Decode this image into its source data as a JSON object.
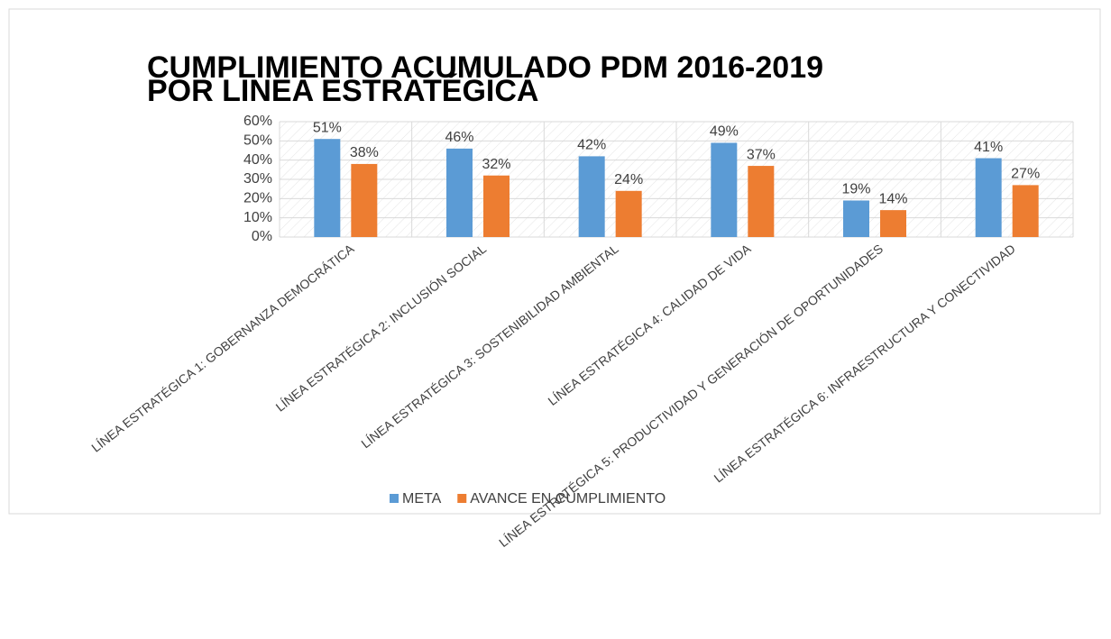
{
  "chart_data": {
    "type": "bar",
    "title": [
      "CUMPLIMIENTO ACUMULADO PDM 2016-2019",
      "POR LINEA ESTRATÉGICA"
    ],
    "categories": [
      "LÍNEA ESTRATÉGICA 1: GOBERNANZA DEMOCRÁTICA",
      "LÍNEA ESTRATÉGICA 2: INCLUSIÓN SOCIAL",
      "LÍNEA ESTRATÉGICA 3: SOSTENIBILIDAD AMBIENTAL",
      "LÍNEA ESTRATÉGICA 4: CALIDAD DE VIDA",
      "LÍNEA ESTRATÉGICA 5: PRODUCTIVIDAD Y GENERACIÓN DE OPORTUNIDADES",
      "LÍNEA ESTRATÉGICA 6: INFRAESTRUCTURA Y CONECTIVIDAD"
    ],
    "series": [
      {
        "name": "META",
        "color": "#5b9bd5",
        "values": [
          51,
          46,
          42,
          49,
          19,
          41
        ],
        "value_labels": [
          "51%",
          "46%",
          "42%",
          "49%",
          "19%",
          "41%"
        ]
      },
      {
        "name": "AVANCE EN CUMPLIMIENTO",
        "color": "#ed7d31",
        "values": [
          38,
          32,
          24,
          37,
          14,
          27
        ],
        "value_labels": [
          "38%",
          "32%",
          "24%",
          "37%",
          "14%",
          "27%"
        ]
      }
    ],
    "ylim": [
      0,
      60
    ],
    "yticks": [
      {
        "value": 0,
        "label": "0%"
      },
      {
        "value": 10,
        "label": "10%"
      },
      {
        "value": 20,
        "label": "20%"
      },
      {
        "value": 30,
        "label": "30%"
      },
      {
        "value": 40,
        "label": "40%"
      },
      {
        "value": 50,
        "label": "50%"
      },
      {
        "value": 60,
        "label": "60%"
      }
    ],
    "grid": true,
    "legend": "bottom"
  }
}
